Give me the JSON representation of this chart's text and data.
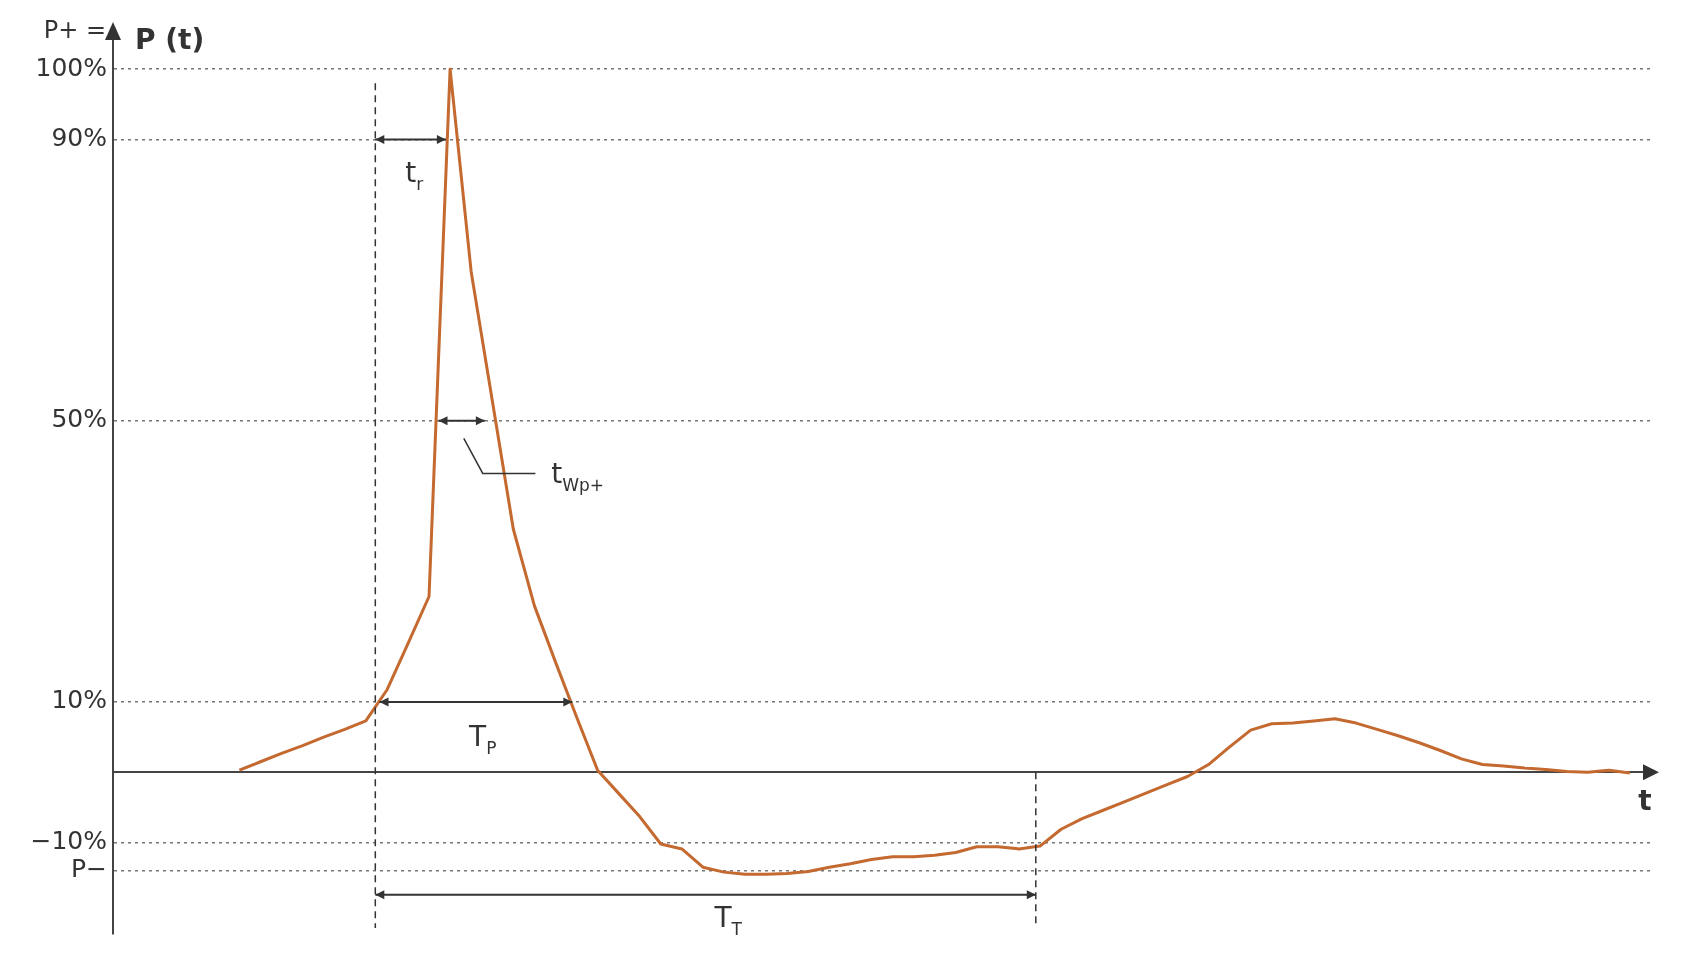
{
  "chart_data": {
    "type": "line",
    "ylabel": "P (t)",
    "xlabel": "t",
    "categories": [
      null,
      null,
      null,
      null,
      null,
      null,
      null,
      null,
      null,
      null,
      null,
      null,
      null,
      null,
      null,
      null,
      null,
      null,
      null,
      null,
      null,
      null,
      null,
      null,
      null,
      null,
      null,
      null,
      null,
      null,
      null,
      null,
      null,
      null,
      null,
      null,
      null,
      null,
      null,
      null,
      null,
      null,
      null,
      null,
      null,
      null,
      null,
      null,
      null,
      null,
      null,
      null,
      null,
      null,
      null,
      null,
      null,
      null,
      null,
      null,
      null,
      null,
      null,
      null,
      null,
      null,
      null,
      null,
      null,
      null,
      null,
      null,
      null,
      null
    ],
    "series": [
      {
        "color": "#c4692f",
        "values": [
          null,
          null,
          null,
          null,
          null,
          null,
          0.3,
          1.5,
          2.7,
          3.8,
          5.0,
          6.1,
          7.3,
          11.7,
          18.3,
          25.0,
          100,
          71.2,
          52.9,
          34.6,
          23.7,
          15.7,
          7.9,
          0.3,
          -3.0,
          -6.3,
          -10.2,
          -10.9,
          -13.5,
          -14.2,
          -14.5,
          -14.5,
          -14.4,
          -14.1,
          -13.5,
          -13.0,
          -12.4,
          -12.0,
          -12.0,
          -11.8,
          -11.4,
          -10.6,
          -10.6,
          -10.9,
          -10.5,
          -8.1,
          -6.6,
          -5.4,
          -4.2,
          -3.0,
          -1.8,
          -0.6,
          1.1,
          3.6,
          6.0,
          6.9,
          7.0,
          7.3,
          7.6,
          7.0,
          6.1,
          5.2,
          4.2,
          3.1,
          1.9,
          1.1,
          0.9,
          0.6,
          0.4,
          0.1,
          0,
          0.3,
          -0.1,
          null
        ]
      }
    ],
    "ylim": [
      -23,
      105
    ],
    "yticks": [
      {
        "value": 100,
        "label": "100%"
      },
      {
        "value": 90,
        "label": "90%"
      },
      {
        "value": 50,
        "label": "50%"
      },
      {
        "value": 10,
        "label": "10%"
      },
      {
        "value": -10,
        "label": "−10%"
      },
      {
        "value": -14,
        "label": "P−"
      }
    ],
    "grid": "y",
    "legend": false,
    "marker": "none",
    "line_style": "solid",
    "tick_labels": "y",
    "annotations": [
      "P+ =",
      "t$_{r}$",
      "t$_{Wp+}$",
      "T$_{P}$",
      "T$_{T}$"
    ]
  }
}
